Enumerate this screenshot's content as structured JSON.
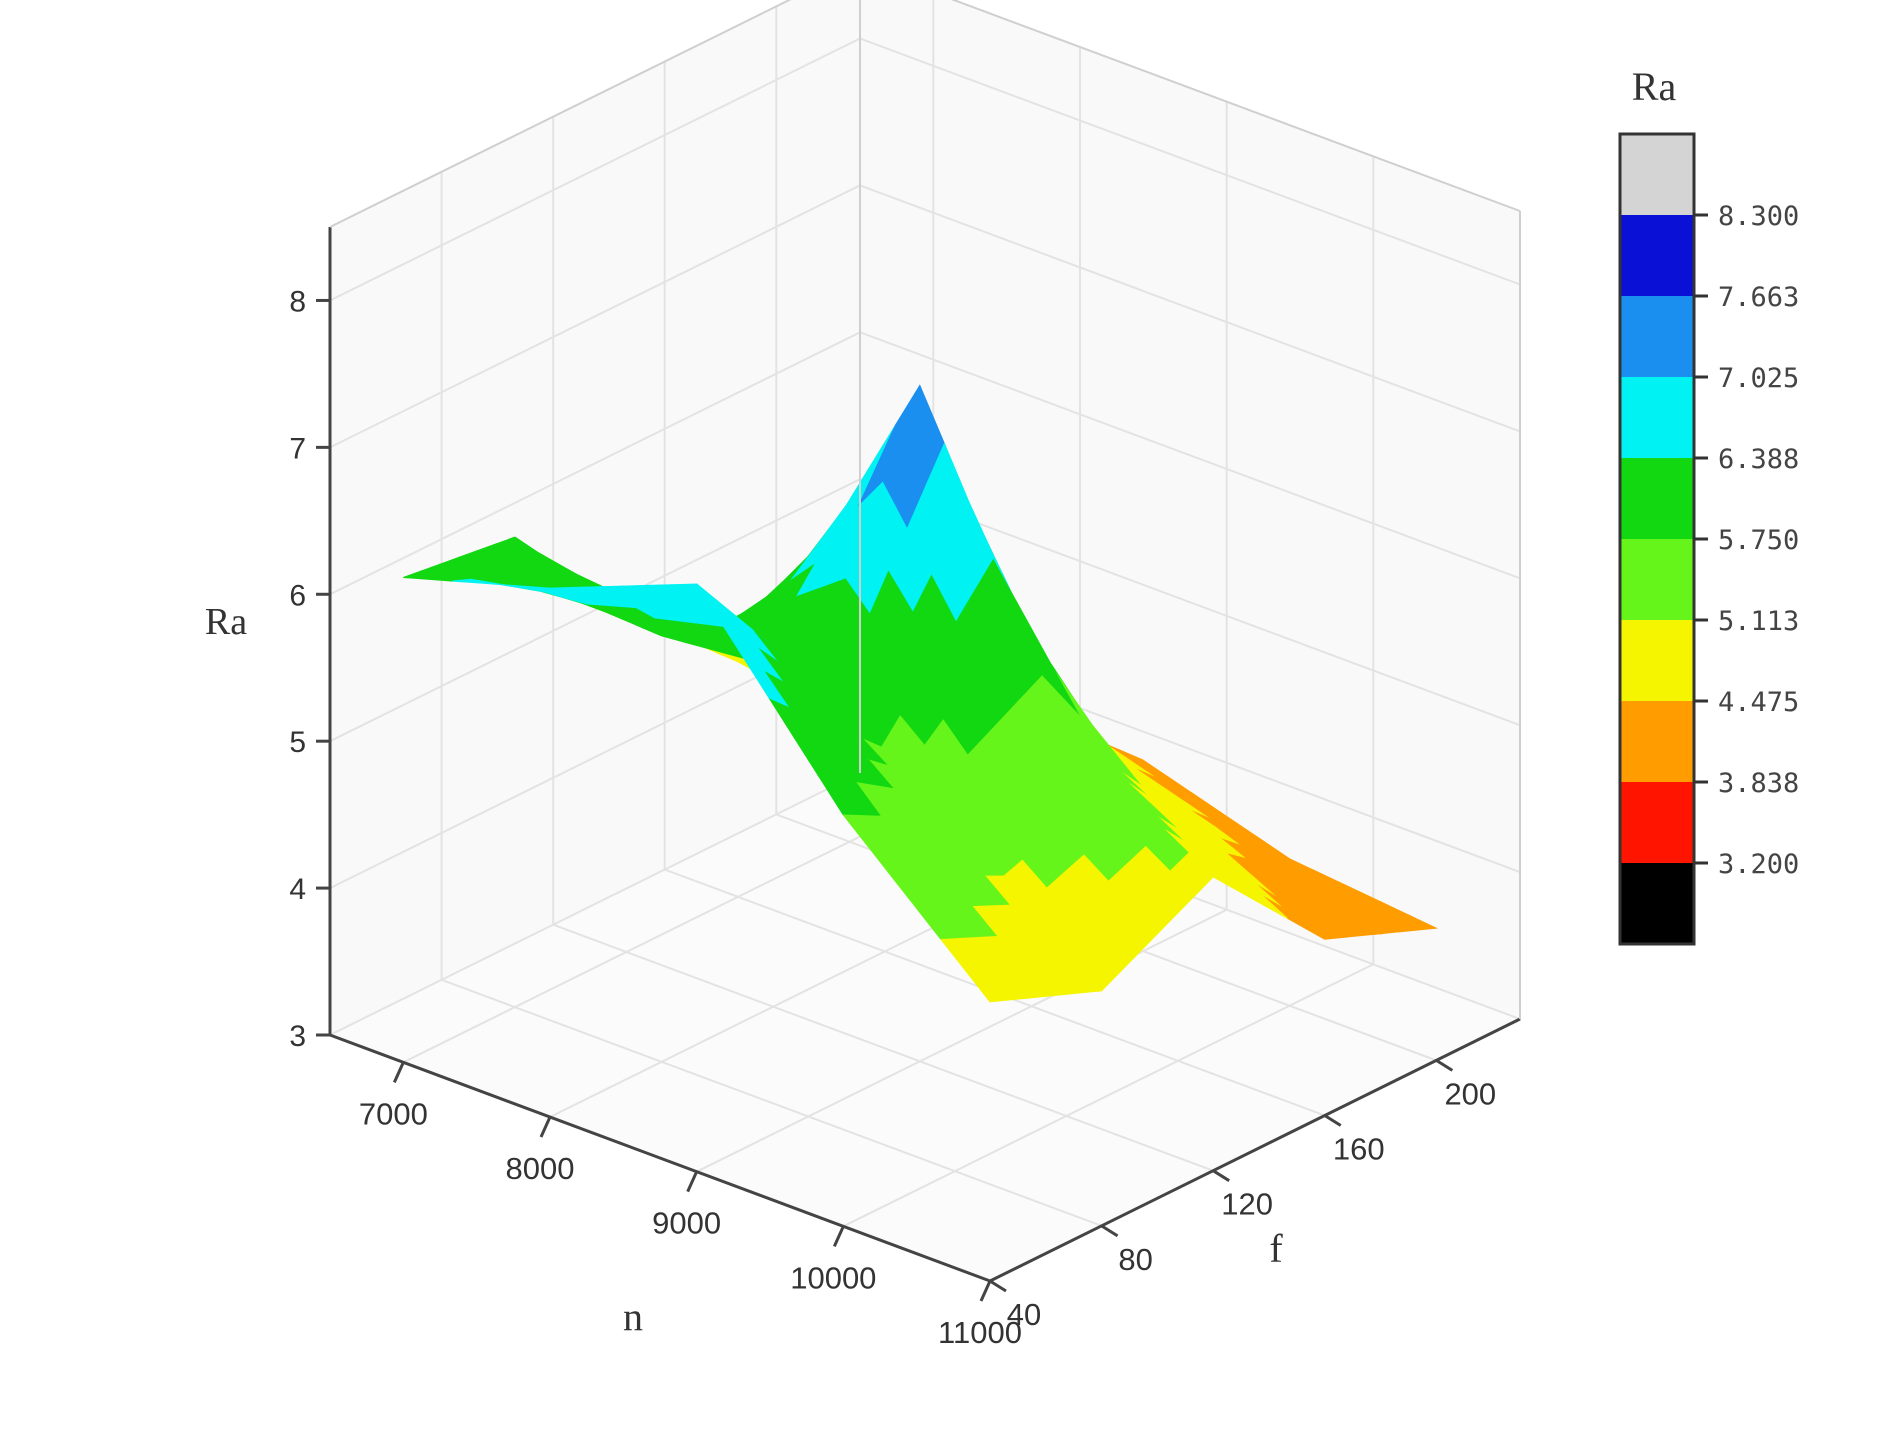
{
  "chart_data": {
    "type": "surface3d",
    "axes": {
      "x": {
        "label": "n",
        "ticks": [
          7000,
          8000,
          9000,
          10000,
          11000
        ],
        "range": [
          6500,
          11000
        ]
      },
      "y": {
        "label": "f",
        "ticks": [
          40,
          80,
          120,
          160,
          200
        ],
        "range": [
          40,
          230
        ]
      },
      "z": {
        "label": "Ra",
        "ticks": [
          3,
          4,
          5,
          6,
          7,
          8
        ],
        "range": [
          3,
          8.5
        ]
      }
    },
    "x_tick_labels": [
      "7000",
      "8000",
      "9000",
      "10000",
      "11000"
    ],
    "y_tick_labels": [
      "40",
      "80",
      "120",
      "160",
      "200"
    ],
    "z_tick_labels": [
      "3",
      "4",
      "5",
      "6",
      "7",
      "8"
    ],
    "grid": true,
    "surface": {
      "n": [
        7000,
        8000,
        9000,
        10000,
        11000
      ],
      "f": [
        40,
        80,
        120,
        160,
        200
      ],
      "Ra": [
        [
          6.3,
          6.6,
          7.0,
          5.8,
          4.9
        ],
        [
          6.2,
          5.9,
          6.0,
          5.4,
          4.6
        ],
        [
          5.3,
          5.6,
          7.6,
          5.6,
          5.0
        ],
        [
          4.6,
          4.5,
          5.0,
          4.7,
          4.2
        ],
        [
          3.8,
          3.9,
          4.3,
          4.0,
          3.9
        ]
      ]
    },
    "colorbar": {
      "title": "Ra",
      "levels": [
        "8.300",
        "7.663",
        "7.025",
        "6.388",
        "5.750",
        "5.113",
        "4.475",
        "3.838",
        "3.200"
      ],
      "level_values": [
        8.3,
        7.663,
        7.025,
        6.388,
        5.75,
        5.113,
        4.475,
        3.838,
        3.2
      ],
      "colors": [
        "#d4d4d4",
        "#0a10d6",
        "#1a8ff0",
        "#00f2f2",
        "#12d812",
        "#66f51a",
        "#f5f500",
        "#ff9c00",
        "#ff1400",
        "#000000"
      ],
      "placement": "right"
    }
  }
}
